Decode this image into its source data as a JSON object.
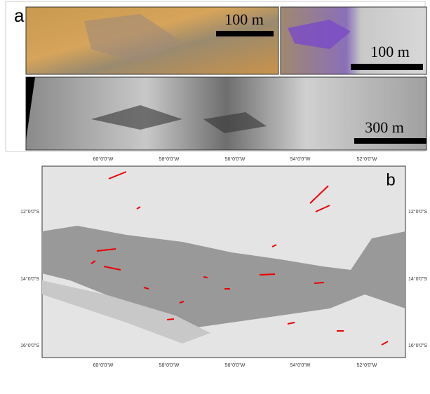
{
  "panel_a": {
    "label": "a",
    "scale_bars": [
      "100 m",
      "100 m",
      "300 m"
    ]
  },
  "panel_b": {
    "label": "b",
    "lon_labels": [
      "60°0'0\"W",
      "58°0'0\"W",
      "56°0'0\"W",
      "54°0'0\"W",
      "52°0'0\"W"
    ],
    "lat_labels": [
      "12°0'0\"S",
      "14°0'0\"S",
      "16°0'0\"S"
    ]
  }
}
